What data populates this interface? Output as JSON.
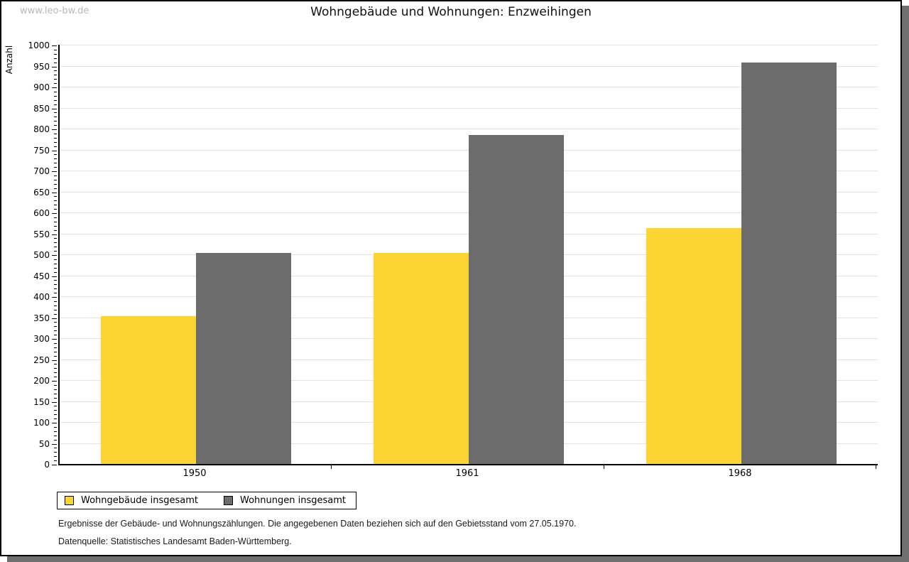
{
  "watermark": "www.leo-bw.de",
  "chart_data": {
    "type": "bar",
    "title": "Wohngebäude und Wohnungen: Enzweihingen",
    "ylabel": "Anzahl",
    "xlabel": "",
    "categories": [
      "1950",
      "1961",
      "1968"
    ],
    "series": [
      {
        "name": "Wohngebäude insgesamt",
        "color": "#FCD535",
        "values": [
          352,
          504,
          563
        ]
      },
      {
        "name": "Wohnungen insgesamt",
        "color": "#6C6C6C",
        "values": [
          503,
          784,
          957
        ]
      }
    ],
    "ylim": [
      0,
      1000
    ],
    "ytick_major": 50,
    "ytick_minor": 10,
    "grid": true,
    "legend_position": "bottom-left"
  },
  "footnotes": [
    "Ergebnisse der Gebäude- und Wohnungszählungen. Die angegebenen Daten beziehen sich auf den Gebietsstand vom 27.05.1970.",
    "Datenquelle: Statistisches Landesamt Baden-Württemberg."
  ],
  "colors": {
    "bar_yellow": "#FCD535",
    "bar_gray": "#6C6C6C",
    "gridline": "#e2e2e2",
    "shadow": "#707070",
    "watermark": "#b8b8b8"
  }
}
